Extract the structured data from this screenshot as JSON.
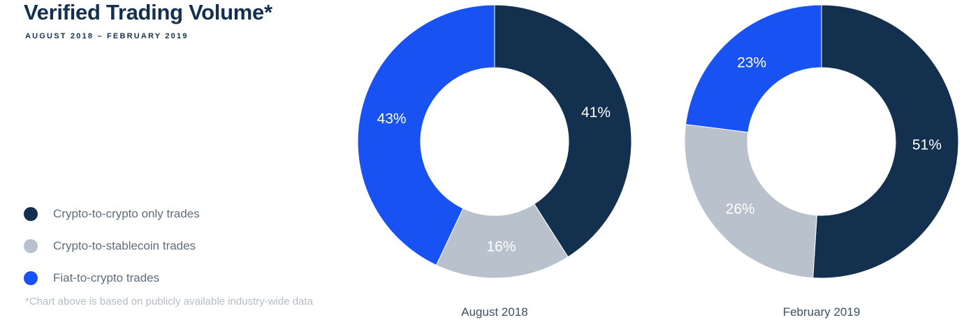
{
  "header": {
    "title": "Verified Trading Volume*",
    "subtitle": "AUGUST 2018 – FEBRUARY 2019"
  },
  "legend": [
    {
      "label": "Crypto-to-crypto only trades",
      "color": "#13304f"
    },
    {
      "label": "Crypto-to-stablecoin trades",
      "color": "#b9c2cc"
    },
    {
      "label": "Fiat-to-crypto trades",
      "color": "#1952f2"
    }
  ],
  "footnote": "*Chart above is based on publicly available industry-wide data",
  "chart_data": [
    {
      "type": "pie",
      "title": "August 2018",
      "categories": [
        "Crypto-to-crypto only trades",
        "Crypto-to-stablecoin trades",
        "Fiat-to-crypto trades"
      ],
      "values": [
        41,
        16,
        43
      ],
      "labels": [
        "41%",
        "16%",
        "43%"
      ],
      "colors": [
        "#13304f",
        "#b9c2cc",
        "#1952f2"
      ],
      "donut": true
    },
    {
      "type": "pie",
      "title": "February 2019",
      "categories": [
        "Crypto-to-crypto only trades",
        "Crypto-to-stablecoin trades",
        "Fiat-to-crypto trades"
      ],
      "values": [
        51,
        26,
        23
      ],
      "labels": [
        "51%",
        "26%",
        "23%"
      ],
      "colors": [
        "#13304f",
        "#b9c2cc",
        "#1952f2"
      ],
      "donut": true
    }
  ]
}
